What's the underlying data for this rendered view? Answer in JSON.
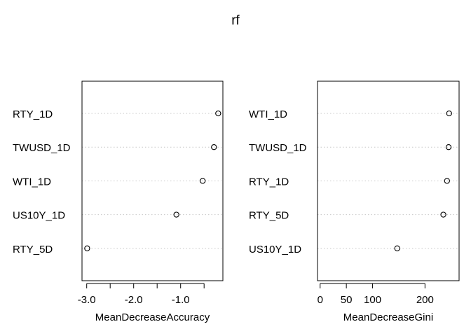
{
  "figure": {
    "title": "rf"
  },
  "chart_data": [
    {
      "type": "scatter",
      "subtype": "dotchart",
      "xlabel": "MeanDecreaseAccuracy",
      "xlim": [
        -3.1,
        -0.1
      ],
      "xticks": [
        -3.0,
        -2.5,
        -2.0,
        -1.5,
        -1.0,
        -0.5
      ],
      "xtick_labels": [
        "-3.0",
        "",
        "-2.0",
        "",
        "-1.0",
        ""
      ],
      "grid": "dotted row guides",
      "categories": [
        "RTY_1D",
        "TWUSD_1D",
        "WTI_1D",
        "US10Y_1D",
        "RTY_5D"
      ],
      "values": [
        -0.2,
        -0.29,
        -0.53,
        -1.09,
        -2.99
      ]
    },
    {
      "type": "scatter",
      "subtype": "dotchart",
      "xlabel": "MeanDecreaseGini",
      "xlim": [
        -5,
        265
      ],
      "xticks": [
        0,
        50,
        100,
        200
      ],
      "xtick_labels": [
        "0",
        "50",
        "100",
        "200"
      ],
      "grid": "dotted row guides",
      "categories": [
        "WTI_1D",
        "TWUSD_1D",
        "RTY_1D",
        "RTY_5D",
        "US10Y_1D"
      ],
      "values": [
        246,
        245,
        242,
        235,
        147
      ]
    }
  ]
}
